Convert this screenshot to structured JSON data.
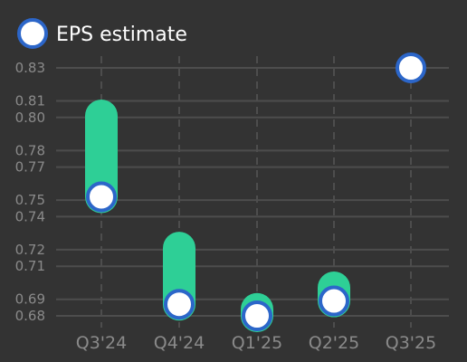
{
  "chart_data": {
    "type": "scatter",
    "title": "",
    "xlabel": "",
    "ylabel": "",
    "categories": [
      "Q3'24",
      "Q4'24",
      "Q1'25",
      "Q2'25",
      "Q3'25"
    ],
    "yticks": [
      "0.68",
      "0.69",
      "0.71",
      "0.72",
      "0.74",
      "0.75",
      "0.77",
      "0.78",
      "0.80",
      "0.81",
      "0.83"
    ],
    "ylim": [
      0.675,
      0.835
    ],
    "grid": true,
    "legend": {
      "position": "top-left",
      "label": "EPS estimate"
    },
    "series": [
      {
        "name": "EPS estimate",
        "values": [
          0.752,
          0.687,
          0.68,
          0.689,
          0.83
        ]
      }
    ],
    "ranges": [
      {
        "category": "Q3'24",
        "low": 0.752,
        "high": 0.801
      },
      {
        "category": "Q4'24",
        "low": 0.687,
        "high": 0.721
      },
      {
        "category": "Q1'25",
        "low": 0.68,
        "high": 0.684
      },
      {
        "category": "Q2'25",
        "low": 0.689,
        "high": 0.697
      }
    ],
    "colors": {
      "background": "#333333",
      "grid": "#4d4d4d",
      "range_bar": "#2ecf96",
      "marker_fill": "#ffffff",
      "marker_stroke": "#2c66c9",
      "tick_text": "#8a8a8a",
      "legend_text": "#ffffff"
    }
  }
}
